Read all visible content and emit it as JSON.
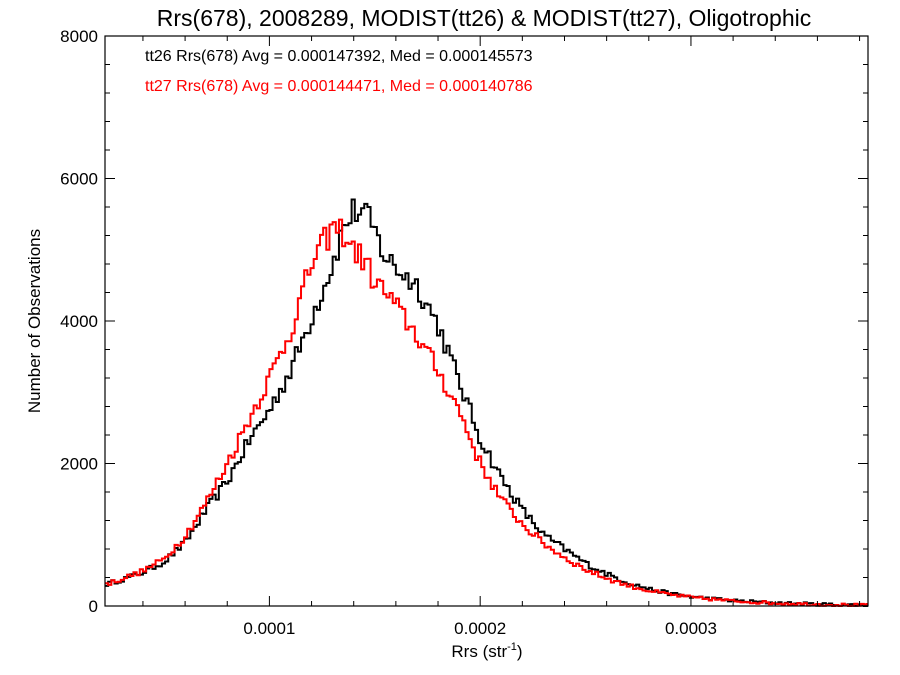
{
  "chart_data": {
    "type": "histogram",
    "title": "Rrs(678), 2008289, MODIST(tt26) & MODIST(tt27), Oligotrophic",
    "xlabel_main": "Rrs (str",
    "xlabel_sup": "-1",
    "xlabel_close": ")",
    "ylabel": "Number of Observations",
    "xlim": [
      2.2e-05,
      0.000384
    ],
    "ylim": [
      0,
      8000
    ],
    "x_ticks": [
      0.0001,
      0.0002,
      0.0003
    ],
    "x_tick_labels": [
      "0.0001",
      "0.0002",
      "0.0003"
    ],
    "y_ticks": [
      0,
      2000,
      4000,
      6000,
      8000
    ],
    "y_tick_labels": [
      "0",
      "2000",
      "4000",
      "6000",
      "8000"
    ],
    "bin_width": 1.5e-06,
    "legend": [
      {
        "text": "tt26 Rrs(678) Avg = 0.000147392, Med = 0.000145573",
        "color": "#000000"
      },
      {
        "text": "tt27 Rrs(678) Avg = 0.000144471, Med = 0.000140786",
        "color": "#ff0000"
      }
    ],
    "series": [
      {
        "color": "#000000",
        "points": [
          [
            2.2e-05,
            300
          ],
          [
            3e-05,
            370
          ],
          [
            4e-05,
            470
          ],
          [
            5e-05,
            620
          ],
          [
            6e-05,
            890
          ],
          [
            7e-05,
            1350
          ],
          [
            8e-05,
            1750
          ],
          [
            9e-05,
            2300
          ],
          [
            0.0001,
            2750
          ],
          [
            0.00011,
            3300
          ],
          [
            0.00012,
            4050
          ],
          [
            0.00013,
            4800
          ],
          [
            0.000135,
            5300
          ],
          [
            0.00014,
            5550
          ],
          [
            0.000145,
            5520
          ],
          [
            0.00015,
            5250
          ],
          [
            0.000155,
            4900
          ],
          [
            0.00016,
            4750
          ],
          [
            0.00017,
            4500
          ],
          [
            0.00018,
            3950
          ],
          [
            0.00019,
            3150
          ],
          [
            0.0002,
            2350
          ],
          [
            0.00021,
            1800
          ],
          [
            0.00022,
            1350
          ],
          [
            0.00023,
            1000
          ],
          [
            0.00024,
            800
          ],
          [
            0.00025,
            600
          ],
          [
            0.00026,
            450
          ],
          [
            0.00027,
            330
          ],
          [
            0.00028,
            240
          ],
          [
            0.00029,
            175
          ],
          [
            0.0003,
            130
          ],
          [
            0.00032,
            75
          ],
          [
            0.00034,
            45
          ],
          [
            0.00036,
            25
          ],
          [
            0.000384,
            12
          ]
        ]
      },
      {
        "color": "#ff0000",
        "points": [
          [
            2.2e-05,
            300
          ],
          [
            3e-05,
            380
          ],
          [
            4e-05,
            490
          ],
          [
            5e-05,
            660
          ],
          [
            6e-05,
            980
          ],
          [
            7e-05,
            1450
          ],
          [
            8e-05,
            2000
          ],
          [
            9e-05,
            2600
          ],
          [
            0.0001,
            3200
          ],
          [
            0.00011,
            3850
          ],
          [
            0.00012,
            4800
          ],
          [
            0.00013,
            5300
          ],
          [
            0.000135,
            5250
          ],
          [
            0.00014,
            5000
          ],
          [
            0.000145,
            4850
          ],
          [
            0.00015,
            4550
          ],
          [
            0.000155,
            4400
          ],
          [
            0.00016,
            4200
          ],
          [
            0.00017,
            3800
          ],
          [
            0.00018,
            3300
          ],
          [
            0.00019,
            2750
          ],
          [
            0.0002,
            2000
          ],
          [
            0.00021,
            1500
          ],
          [
            0.00022,
            1150
          ],
          [
            0.00023,
            880
          ],
          [
            0.00024,
            680
          ],
          [
            0.00025,
            510
          ],
          [
            0.00026,
            390
          ],
          [
            0.00027,
            290
          ],
          [
            0.00028,
            215
          ],
          [
            0.00029,
            160
          ],
          [
            0.0003,
            120
          ],
          [
            0.00032,
            70
          ],
          [
            0.00034,
            40
          ],
          [
            0.00036,
            22
          ],
          [
            0.000384,
            10
          ]
        ]
      }
    ]
  }
}
